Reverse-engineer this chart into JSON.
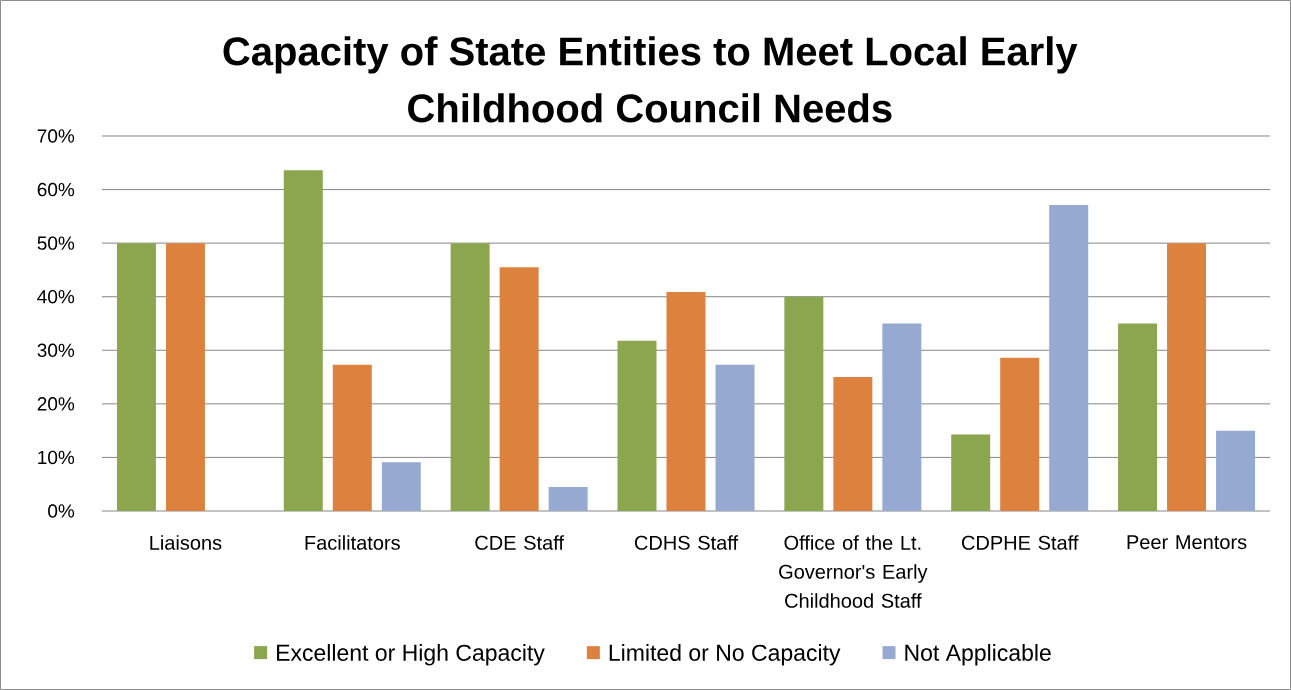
{
  "chart_data": {
    "type": "bar",
    "title": "Capacity of State Entities to Meet Local Early Childhood Council Needs",
    "categories": [
      "Liaisons",
      "Facilitators",
      "CDE Staff",
      "CDHS Staff",
      "Office of the Lt. Governor's Early Childhood Staff",
      "CDPHE Staff",
      "Peer Mentors"
    ],
    "series": [
      {
        "name": "Excellent or High Capacity",
        "color": "#8ba64e",
        "values": [
          50,
          63.6,
          50,
          31.8,
          40,
          14.3,
          35
        ]
      },
      {
        "name": "Limited or No Capacity",
        "color": "#dc823e",
        "values": [
          50,
          27.3,
          45.5,
          40.9,
          25,
          28.6,
          50
        ]
      },
      {
        "name": "Not Applicable",
        "color": "#95a9d1",
        "values": [
          null,
          9.1,
          4.5,
          27.3,
          35,
          57.1,
          15
        ]
      }
    ],
    "ylim": [
      0,
      70
    ],
    "yticks": [
      {
        "value": 0,
        "label": "0%"
      },
      {
        "value": 10,
        "label": "10%"
      },
      {
        "value": 20,
        "label": "20%"
      },
      {
        "value": 30,
        "label": "30%"
      },
      {
        "value": 40,
        "label": "40%"
      },
      {
        "value": 50,
        "label": "50%"
      },
      {
        "value": 60,
        "label": "60%"
      },
      {
        "value": 70,
        "label": "70%"
      }
    ],
    "grid": "y",
    "legend": "bottom"
  }
}
